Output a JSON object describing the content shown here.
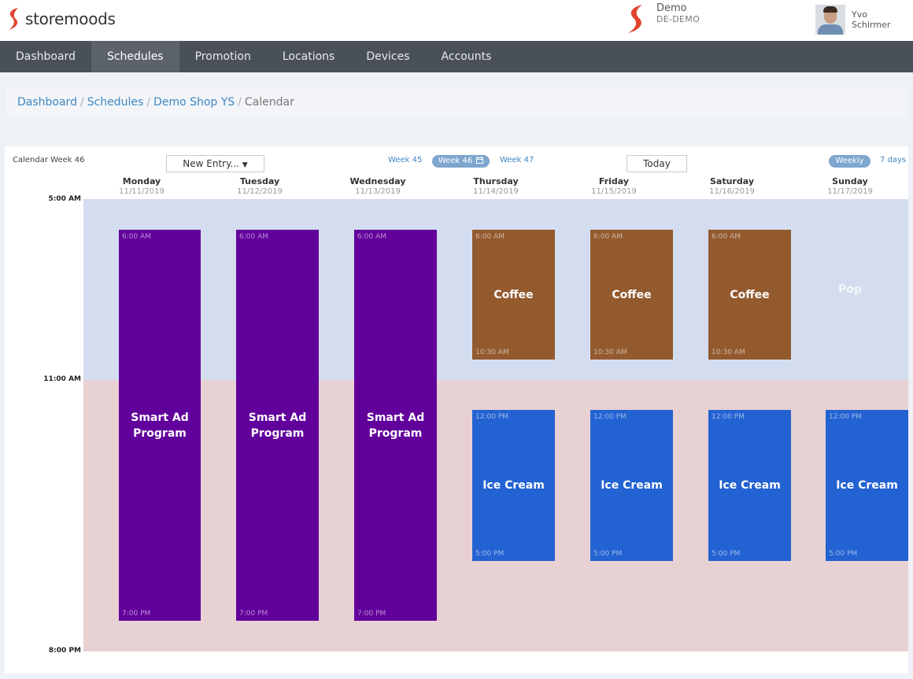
{
  "app": {
    "brand": "storemoods",
    "org_name": "Demo",
    "org_code": "DE-DEMO",
    "user_first": "Yvo",
    "user_last": "Schirmer",
    "brand_color": "#e0442d"
  },
  "nav": {
    "items": [
      {
        "label": "Dashboard"
      },
      {
        "label": "Schedules",
        "active": true
      },
      {
        "label": "Promotion"
      },
      {
        "label": "Locations"
      },
      {
        "label": "Devices"
      },
      {
        "label": "Accounts"
      }
    ]
  },
  "breadcrumb": {
    "items": [
      "Dashboard",
      "Schedules",
      "Demo Shop YS"
    ],
    "current": "Calendar"
  },
  "calendar": {
    "week_label": "Calendar Week 46",
    "new_entry": "New Entry...",
    "prev_week": "Week 45",
    "current_week": "Week 46",
    "next_week": "Week 47",
    "today": "Today",
    "view_weekly": "Weekly",
    "view_7days": "7 days",
    "days": [
      {
        "name": "Monday",
        "date": "11/11/2019"
      },
      {
        "name": "Tuesday",
        "date": "11/12/2019"
      },
      {
        "name": "Wednesday",
        "date": "11/13/2019"
      },
      {
        "name": "Thursday",
        "date": "11/14/2019"
      },
      {
        "name": "Friday",
        "date": "11/15/2019"
      },
      {
        "name": "Saturday",
        "date": "11/16/2019"
      },
      {
        "name": "Sunday",
        "date": "11/17/2019"
      }
    ],
    "time_labels": [
      "5:00 AM",
      "11:00 AM",
      "8:00 PM"
    ],
    "zone_colors": {
      "morning": "#d3ddef",
      "afternoon": "#e8d1d3"
    },
    "events": [
      {
        "day": 0,
        "title": "Smart Ad Program",
        "start": "6:00 AM",
        "end": "7:00 PM",
        "color": "#62009b"
      },
      {
        "day": 1,
        "title": "Smart Ad Program",
        "start": "6:00 AM",
        "end": "7:00 PM",
        "color": "#62009b"
      },
      {
        "day": 2,
        "title": "Smart Ad Program",
        "start": "6:00 AM",
        "end": "7:00 PM",
        "color": "#62009b"
      },
      {
        "day": 3,
        "title": "Coffee",
        "start": "6:00 AM",
        "end": "10:30 AM",
        "color": "#935a2e"
      },
      {
        "day": 4,
        "title": "Coffee",
        "start": "6:00 AM",
        "end": "10:30 AM",
        "color": "#935a2e"
      },
      {
        "day": 5,
        "title": "Coffee",
        "start": "6:00 AM",
        "end": "10:30 AM",
        "color": "#935a2e"
      },
      {
        "day": 3,
        "title": "Ice Cream",
        "start": "12:00 PM",
        "end": "5:00 PM",
        "color": "#2362d2"
      },
      {
        "day": 4,
        "title": "Ice Cream",
        "start": "12:00 PM",
        "end": "5:00 PM",
        "color": "#2362d2"
      },
      {
        "day": 5,
        "title": "Ice Cream",
        "start": "12:00 PM",
        "end": "5:00 PM",
        "color": "#2362d2"
      },
      {
        "day": 6,
        "title": "Ice Cream",
        "start": "12:00 PM",
        "end": "5:00 PM",
        "color": "#2362d2"
      }
    ],
    "sunday_overlay": "Pop"
  }
}
